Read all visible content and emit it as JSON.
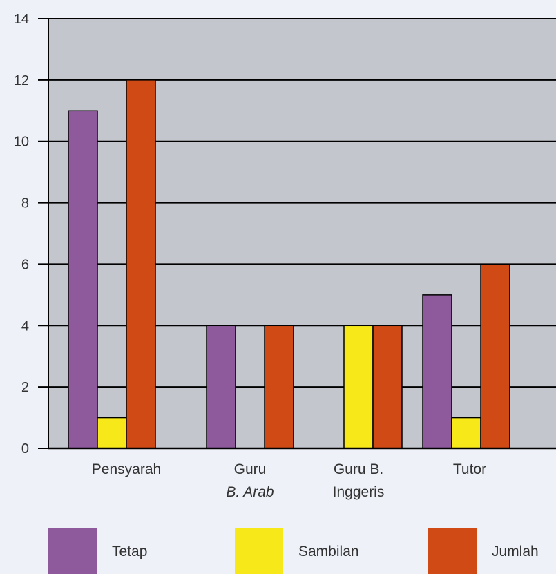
{
  "chart_data": {
    "type": "bar",
    "categories": [
      [
        "Pensyarah"
      ],
      [
        "Guru",
        "B. Arab"
      ],
      [
        "Guru B.",
        "Inggeris"
      ],
      [
        "Tutor"
      ]
    ],
    "series": [
      {
        "name": "Tetap",
        "color": "#8e5a9b",
        "values": [
          11,
          4,
          0,
          5
        ]
      },
      {
        "name": "Sambilan",
        "color": "#f7e81a",
        "values": [
          1,
          0,
          4,
          1
        ]
      },
      {
        "name": "Jumlah",
        "color": "#cf4a14",
        "values": [
          12,
          4,
          4,
          6
        ]
      }
    ],
    "yticks": [
      "0",
      "2",
      "4",
      "6",
      "8",
      "10",
      "12",
      "14"
    ],
    "ylim": [
      0,
      14
    ],
    "grid": true,
    "legend": "bottom",
    "plot_background": "#c4c6ce"
  }
}
